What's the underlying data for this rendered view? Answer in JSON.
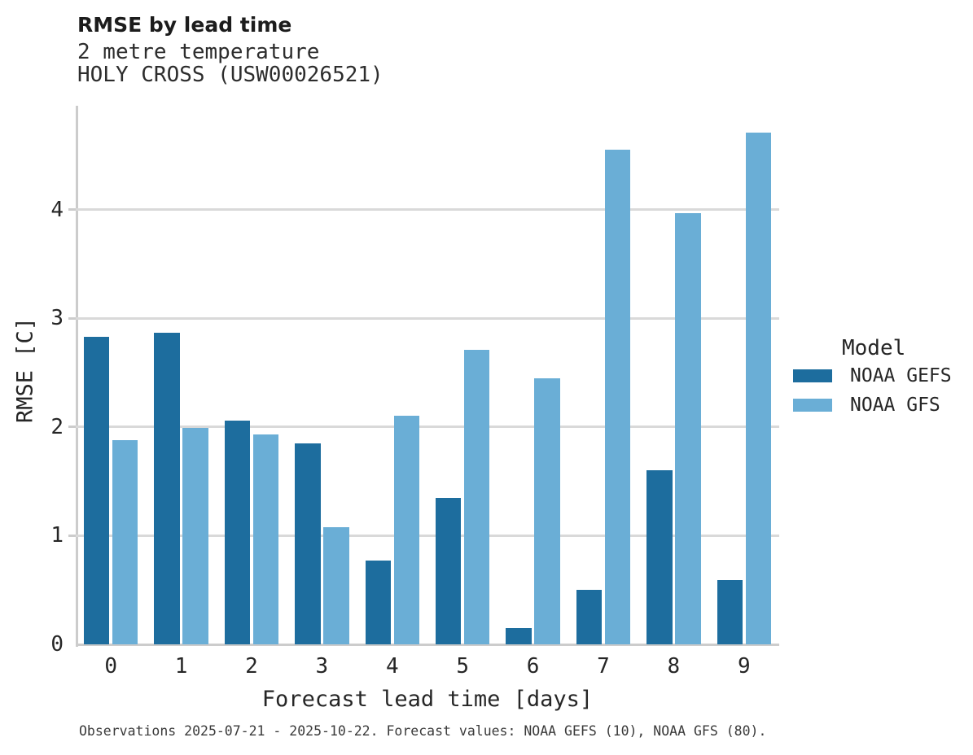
{
  "header": {
    "title": "RMSE by lead time",
    "subtitle1": "2 metre temperature",
    "subtitle2": "HOLY CROSS (USW00026521)"
  },
  "legend": {
    "title": "Model",
    "items": [
      {
        "label": "NOAA GEFS",
        "color": "#1d6d9e"
      },
      {
        "label": "NOAA GFS",
        "color": "#6aaed6"
      }
    ]
  },
  "caption": "Observations 2025-07-21 - 2025-10-22. Forecast values: NOAA GEFS (10), NOAA GFS (80).",
  "chart_data": {
    "type": "bar",
    "title": "RMSE by lead time",
    "subtitle": [
      "2 metre temperature",
      "HOLY CROSS (USW00026521)"
    ],
    "xlabel": "Forecast lead time [days]",
    "ylabel": "RMSE [C]",
    "categories": [
      0,
      1,
      2,
      3,
      4,
      5,
      6,
      7,
      8,
      9
    ],
    "series": [
      {
        "name": "NOAA GEFS",
        "color": "#1d6d9e",
        "values": [
          2.83,
          2.87,
          2.06,
          1.85,
          0.77,
          1.35,
          0.15,
          0.5,
          1.6,
          0.59
        ]
      },
      {
        "name": "NOAA GFS",
        "color": "#6aaed6",
        "values": [
          1.88,
          1.99,
          1.93,
          1.08,
          2.1,
          2.71,
          2.45,
          4.55,
          3.97,
          4.71
        ]
      }
    ],
    "ylim": [
      0,
      4.97
    ],
    "yticks": [
      0,
      1,
      2,
      3,
      4
    ],
    "grid": "horizontal",
    "legend_title": "Model",
    "legend_position": "right"
  }
}
